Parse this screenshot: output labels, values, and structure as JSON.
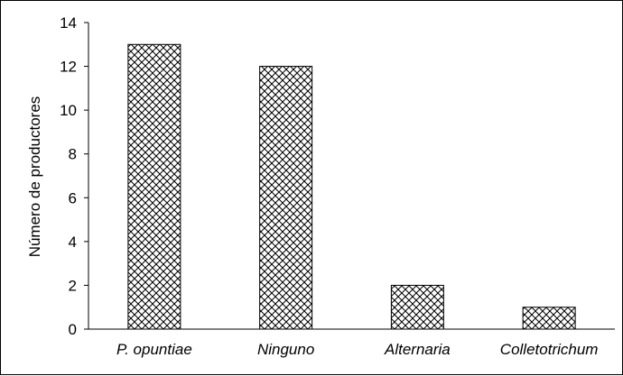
{
  "chart_data": {
    "type": "bar",
    "categories": [
      "P. opuntiae",
      "Ninguno",
      "Alternaria",
      "Colletotrichum"
    ],
    "values": [
      13,
      12,
      2,
      1
    ],
    "title": "",
    "xlabel": "",
    "ylabel": "Número de productores",
    "ylim": [
      0,
      14
    ],
    "yticks": [
      0,
      2,
      4,
      6,
      8,
      10,
      12,
      14
    ],
    "grid": false,
    "legend": "none",
    "bar_fill": "crosshatch",
    "colors": {
      "bar_stroke": "#000000",
      "hatch": "#000000",
      "background": "#ffffff"
    }
  }
}
